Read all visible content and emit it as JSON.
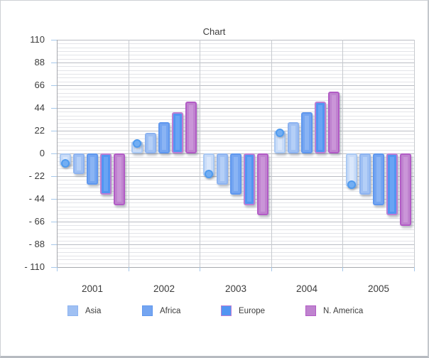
{
  "window": {
    "background": "#ffffff",
    "border_color": "#cdd0d4"
  },
  "chart_data": {
    "type": "bar",
    "title": "Chart",
    "categories": [
      "2001",
      "2002",
      "2003",
      "2004",
      "2005"
    ],
    "series": [
      {
        "name": "",
        "in_legend": false,
        "style": "bar-with-circle-marker",
        "values": [
          -12,
          12,
          -22,
          22,
          -32
        ],
        "colors": {
          "border": "#aac9f3",
          "fill": "#c9dcf8",
          "core": "#d9e7fb",
          "marker_fill": "#72aef3",
          "marker_border": "#4f9bef"
        }
      },
      {
        "name": "Asia",
        "in_legend": true,
        "style": "bar",
        "values": [
          -20,
          20,
          -30,
          30,
          -40
        ],
        "colors": {
          "border": "#8db3f0",
          "fill": "#9fc0f3",
          "core": "#b4cff7"
        }
      },
      {
        "name": "Africa",
        "in_legend": true,
        "style": "bar",
        "values": [
          -30,
          30,
          -40,
          40,
          -50
        ],
        "colors": {
          "border": "#5f97ee",
          "fill": "#74a5f1",
          "core": "#8ab4f4"
        }
      },
      {
        "name": "Europe",
        "in_legend": true,
        "style": "bar",
        "values": [
          -40,
          40,
          -50,
          50,
          -60
        ],
        "colors": {
          "border": "#bc7ed3",
          "fill": "#5295f2",
          "core": "#69a4f4"
        }
      },
      {
        "name": "N. America",
        "in_legend": true,
        "style": "bar",
        "values": [
          -50,
          50,
          -60,
          60,
          -70
        ],
        "colors": {
          "border": "#b25bc5",
          "fill": "#bf83cf",
          "core": "#ca95d8"
        }
      }
    ],
    "y_axis": {
      "min": -110,
      "max": 110,
      "major_step": 22,
      "minor_divisions_per_major": 6,
      "tick_labels": [
        "110",
        "88",
        "66",
        "44",
        "22",
        "0",
        "- 22",
        "- 44",
        "- 66",
        "- 88",
        "- 110"
      ]
    },
    "x_axis": {
      "labels": [
        "2001",
        "2002",
        "2003",
        "2004",
        "2005"
      ]
    },
    "legend_position": "bottom",
    "grid": {
      "major_color": "#babdc4",
      "minor_color": "#e3e4e8",
      "vertical_color": "#c7cacf",
      "axis_color": "#a7a9ae",
      "tick_color": "#a6c8ea"
    }
  }
}
